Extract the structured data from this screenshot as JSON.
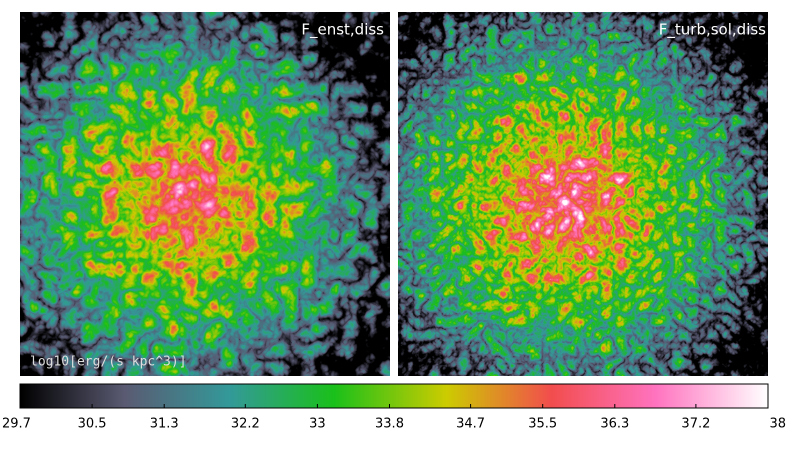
{
  "panels": [
    {
      "label": "F_enst,diss"
    },
    {
      "label": "F_turb,sol,diss"
    }
  ],
  "colorbar": {
    "label": "log10[erg/(s kpc^3)]",
    "lim": [
      29.7,
      38
    ],
    "ticks": [
      29.7,
      30.5,
      31.3,
      32.2,
      33,
      33.8,
      34.7,
      35.5,
      36.3,
      37.2,
      38
    ]
  }
}
